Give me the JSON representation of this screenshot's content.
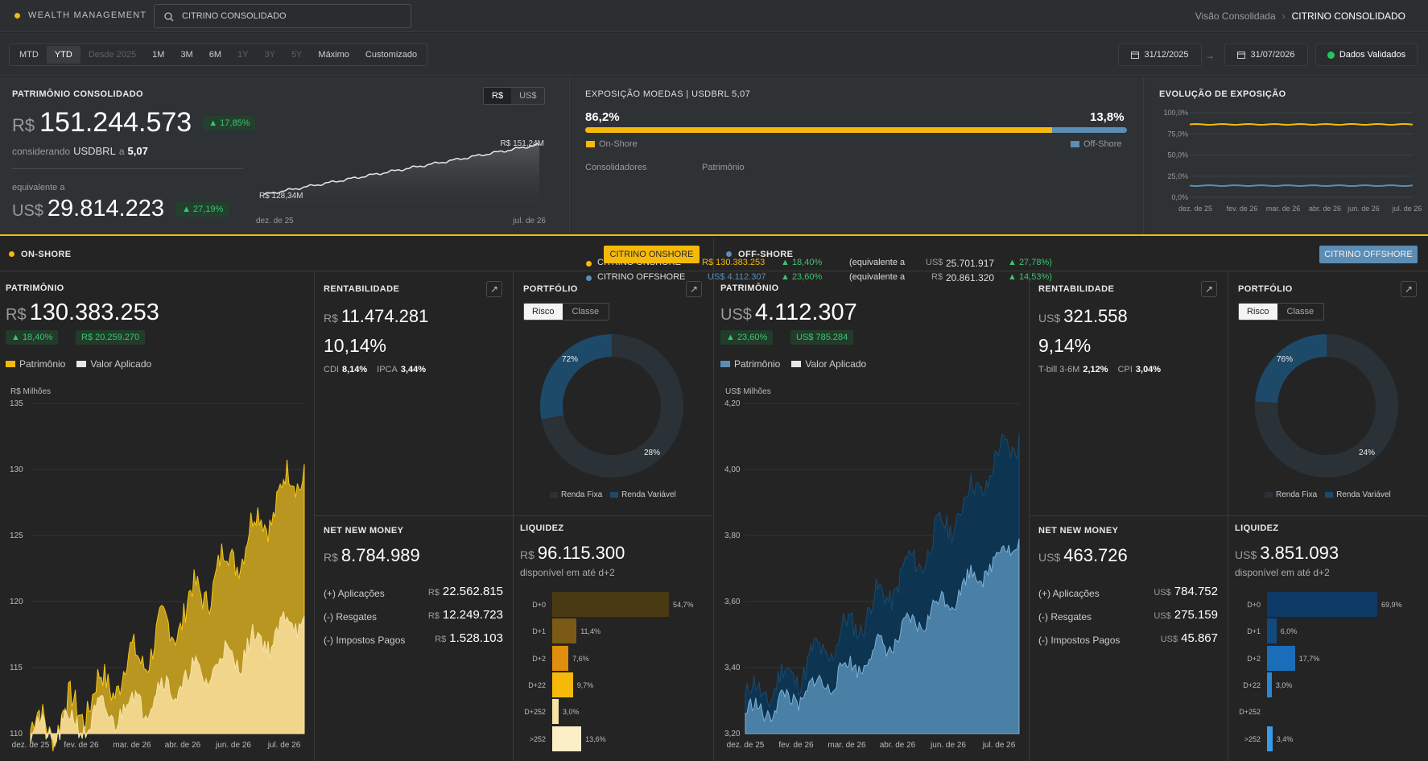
{
  "header": {
    "brand": "WEALTH MANAGEMENT",
    "search_placeholder": "CITRINO CONSOLIDADO",
    "breadcrumb_parent": "Visão Consolidada",
    "breadcrumb_current": "CITRINO CONSOLIDADO"
  },
  "periods": [
    {
      "label": "MTD",
      "state": "normal"
    },
    {
      "label": "YTD",
      "state": "active"
    },
    {
      "label": "Desde 2025",
      "state": "disabled"
    },
    {
      "label": "1M",
      "state": "normal"
    },
    {
      "label": "3M",
      "state": "normal"
    },
    {
      "label": "6M",
      "state": "normal"
    },
    {
      "label": "1Y",
      "state": "disabled"
    },
    {
      "label": "3Y",
      "state": "disabled"
    },
    {
      "label": "5Y",
      "state": "disabled"
    },
    {
      "label": "Máximo",
      "state": "normal"
    },
    {
      "label": "Customizado",
      "state": "normal"
    }
  ],
  "dates": {
    "start": "31/12/2025",
    "arrow": "→",
    "end": "31/07/2026",
    "status": "Dados Validados"
  },
  "consolidated": {
    "title": "PATRIMÔNIO CONSOLIDADO",
    "currency_brl": "R$",
    "currency_usd": "US$",
    "value": "151.244.573",
    "change": "▲ 17,85%",
    "fx_prefix": "considerando",
    "fx_pair": "USDBRL",
    "fx_a": "a",
    "fx_rate": "5,07",
    "equiv_label": "equivalente a",
    "equiv_value": "29.814.223",
    "equiv_change": "▲ 27,19%",
    "toggle_brl": "R$",
    "toggle_usd": "US$",
    "spark_start": "R$ 128,34M",
    "spark_end": "R$ 151,24M",
    "x_start": "dez. de 25",
    "x_end": "jul. de 26"
  },
  "exposure": {
    "title": "EXPOSIÇÃO MOEDAS | USDBRL 5,07",
    "pct_on": "86,2%",
    "pct_off": "13,8%",
    "fraction_on": 0.862,
    "legend_on": "On-Shore",
    "legend_off": "Off-Shore",
    "col_consol": "Consolidadores",
    "col_pat": "Patrimônio",
    "rows": [
      {
        "name": "CITRINO ONSHORE",
        "color": "#f5b90a",
        "value": "R$ 130.383.253",
        "change": "▲ 18,40%",
        "equiv": "(equivalente a",
        "equiv_cur": "US$",
        "equiv_value": "25.701.917",
        "equiv_change": "▲ 27,78%)"
      },
      {
        "name": "CITRINO OFFSHORE",
        "color": "#5b8db5",
        "value": "US$ 4.112.307",
        "change": "▲ 23,60%",
        "equiv": "(equivalente a",
        "equiv_cur": "R$",
        "equiv_value": "20.861.320",
        "equiv_change": "▲ 14,53%)"
      }
    ]
  },
  "evolution": {
    "title": "EVOLUÇÃO DE EXPOSIÇÃO",
    "yticks": [
      "100,0%",
      "75,0%",
      "50,0%",
      "25,0%",
      "0,0%"
    ],
    "xticks": [
      "dez. de 25",
      "fev. de 26",
      "mar. de 26",
      "abr. de 26",
      "jun. de 26",
      "jul. de 26"
    ],
    "on_level": 86.2,
    "off_level": 13.8
  },
  "onshore": {
    "label": "ON-SHORE",
    "button": "CITRINO ONSHORE",
    "accent": "#f5b90a",
    "pat": {
      "title": "PATRIMÔNIO",
      "cur": "R$",
      "value": "130.383.253",
      "change": "▲ 18,40%",
      "gain": "R$ 20.259.270",
      "legend1": "Patrimônio",
      "legend2": "Valor Aplicado",
      "unit": "R$ Milhões",
      "yticks": [
        "135",
        "130",
        "125",
        "120",
        "115",
        "110"
      ],
      "xticks": [
        "dez. de 25",
        "fev. de 26",
        "mar. de 26",
        "abr. de 26",
        "jun. de 26",
        "jul. de 26"
      ]
    },
    "rent": {
      "title": "RENTABILIDADE",
      "cur": "R$",
      "value": "11.474.281",
      "pct": "10,14%",
      "b1": "CDI",
      "b1v": "8,14%",
      "b2": "IPCA",
      "b2v": "3,44%"
    },
    "port": {
      "title": "PORTFÓLIO",
      "seg1": "Risco",
      "seg2": "Classe",
      "p1": "72%",
      "p2": "28%",
      "f1": 0.72,
      "leg1": "Renda Fixa",
      "leg2": "Renda Variável"
    },
    "nnm": {
      "title": "NET NEW MONEY",
      "cur": "R$",
      "value": "8.784.989",
      "rows": [
        {
          "label": "(+) Aplicações",
          "cur": "R$",
          "value": "22.562.815"
        },
        {
          "label": "(-) Resgates",
          "cur": "R$",
          "value": "12.249.723"
        },
        {
          "label": "(-) Impostos Pagos",
          "cur": "R$",
          "value": "1.528.103"
        }
      ]
    },
    "liq": {
      "title": "LIQUIDEZ",
      "cur": "R$",
      "value": "96.115.300",
      "sub": "disponível em até d+2",
      "bars": [
        {
          "label": "D+0",
          "pct": "54,7%",
          "v": 54.7,
          "color": "#4a3a14"
        },
        {
          "label": "D+1",
          "pct": "11,4%",
          "v": 11.4,
          "color": "#7a5a16"
        },
        {
          "label": "D+2",
          "pct": "7,6%",
          "v": 7.6,
          "color": "#e08e0b"
        },
        {
          "label": "D+22",
          "pct": "9,7%",
          "v": 9.7,
          "color": "#f5b90a"
        },
        {
          "label": "D+252",
          "pct": "3,0%",
          "v": 3.0,
          "color": "#f6e2a8"
        },
        {
          "label": ">252",
          "pct": "13,6%",
          "v": 13.6,
          "color": "#fbefc8"
        }
      ]
    }
  },
  "offshore": {
    "label": "OFF-SHORE",
    "button": "CITRINO OFFSHORE",
    "accent": "#5b8db5",
    "pat": {
      "title": "PATRIMÔNIO",
      "cur": "US$",
      "value": "4.112.307",
      "change": "▲ 23,60%",
      "gain": "US$ 785.284",
      "legend1": "Patrimônio",
      "legend2": "Valor Aplicado",
      "unit": "US$ Milhões",
      "yticks": [
        "4,20",
        "4,00",
        "3,80",
        "3,60",
        "3,40",
        "3,20"
      ],
      "xticks": [
        "dez. de 25",
        "fev. de 26",
        "mar. de 26",
        "abr. de 26",
        "jun. de 26",
        "jul. de 26"
      ]
    },
    "rent": {
      "title": "RENTABILIDADE",
      "cur": "US$",
      "value": "321.558",
      "pct": "9,14%",
      "b1": "T-bill 3-6M",
      "b1v": "2,12%",
      "b2": "CPI",
      "b2v": "3,04%"
    },
    "port": {
      "title": "PORTFÓLIO",
      "seg1": "Risco",
      "seg2": "Classe",
      "p1": "76%",
      "p2": "24%",
      "f1": 0.76,
      "leg1": "Renda Fixa",
      "leg2": "Renda Variável"
    },
    "nnm": {
      "title": "NET NEW MONEY",
      "cur": "US$",
      "value": "463.726",
      "rows": [
        {
          "label": "(+) Aplicações",
          "cur": "US$",
          "value": "784.752"
        },
        {
          "label": "(-) Resgates",
          "cur": "US$",
          "value": "275.159"
        },
        {
          "label": "(-) Impostos Pagos",
          "cur": "US$",
          "value": "45.867"
        }
      ]
    },
    "liq": {
      "title": "LIQUIDEZ",
      "cur": "US$",
      "value": "3.851.093",
      "sub": "disponível em até d+2",
      "bars": [
        {
          "label": "D+0",
          "pct": "69,9%",
          "v": 69.9,
          "color": "#0d3a66"
        },
        {
          "label": "D+1",
          "pct": "6,0%",
          "v": 6.0,
          "color": "#124a80"
        },
        {
          "label": "D+2",
          "pct": "17,7%",
          "v": 17.7,
          "color": "#1a6db8"
        },
        {
          "label": "D+22",
          "pct": "3,0%",
          "v": 3.0,
          "color": "#2a88d6"
        },
        {
          "label": "D+252",
          "pct": "",
          "v": 0,
          "color": "#3a9ae6"
        },
        {
          "label": ">252",
          "pct": "3,4%",
          "v": 3.4,
          "color": "#3a9ae6"
        }
      ]
    }
  }
}
